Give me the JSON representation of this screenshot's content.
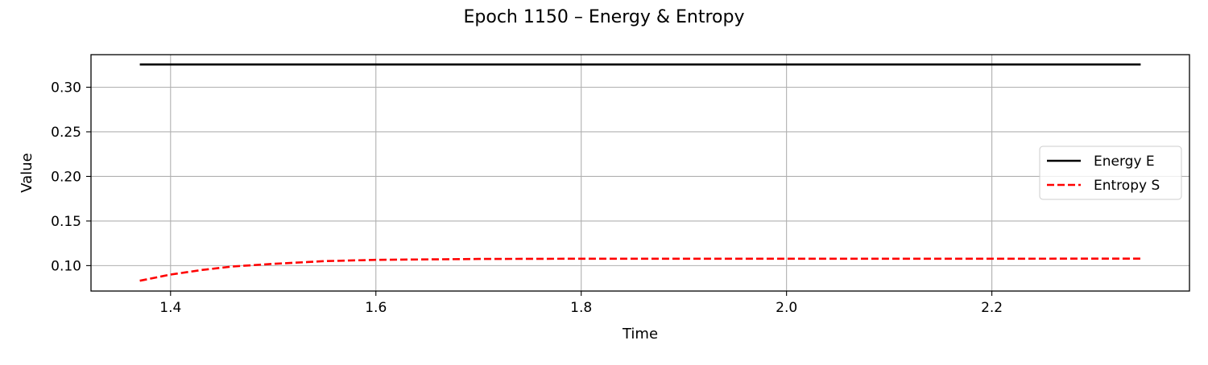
{
  "chart_data": {
    "type": "line",
    "title": "Epoch 1150 – Energy & Entropy",
    "xlabel": "Time",
    "ylabel": "Value",
    "xlim": [
      1.3225,
      2.3925
    ],
    "ylim": [
      0.0715,
      0.3365
    ],
    "xticks": [
      1.4,
      1.6,
      1.8,
      2.0,
      2.2
    ],
    "xtick_labels": [
      "1.4",
      "1.6",
      "1.8",
      "2.0",
      "2.2"
    ],
    "yticks": [
      0.1,
      0.15,
      0.2,
      0.25,
      0.3
    ],
    "ytick_labels": [
      "0.10",
      "0.15",
      "0.20",
      "0.25",
      "0.30"
    ],
    "grid": true,
    "legend_position": "center-right",
    "series": [
      {
        "name": "Energy E",
        "color": "#000000",
        "style": "solid",
        "x": [
          1.37,
          2.345
        ],
        "y": [
          0.3255,
          0.3255
        ]
      },
      {
        "name": "Entropy S",
        "color": "#ff0000",
        "style": "dashed",
        "x": [
          1.37,
          1.4,
          1.43,
          1.46,
          1.5,
          1.55,
          1.6,
          1.7,
          1.8,
          1.9,
          2.0,
          2.1,
          2.2,
          2.3,
          2.345
        ],
        "y": [
          0.083,
          0.09,
          0.095,
          0.099,
          0.102,
          0.105,
          0.1065,
          0.1075,
          0.1077,
          0.1077,
          0.1077,
          0.1077,
          0.1077,
          0.1078,
          0.1078
        ]
      }
    ]
  }
}
